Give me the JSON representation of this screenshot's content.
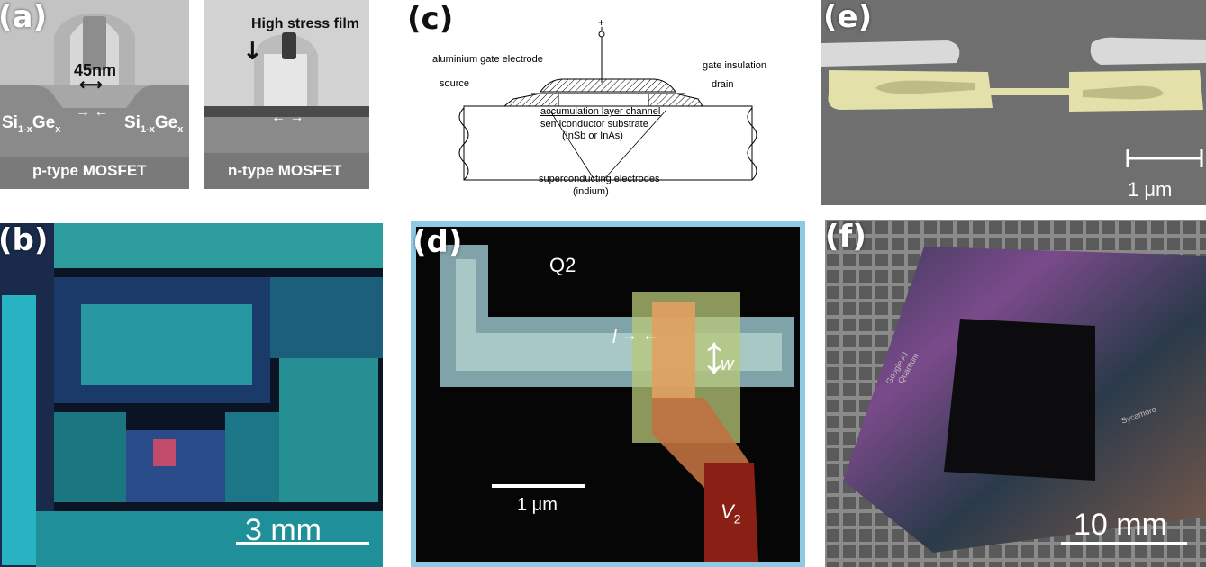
{
  "panels": {
    "a": {
      "label": "(a)",
      "left_device": {
        "dimension": "45nm",
        "material_left": "Si",
        "material_left_sub": "1-x",
        "material_left_ge": "Ge",
        "material_left_ge_sub": "x",
        "material_right": "Si",
        "material_right_sub": "1-x",
        "material_right_ge": "Ge",
        "material_right_ge_sub": "x",
        "caption": "p-type MOSFET"
      },
      "right_device": {
        "annotation": "High stress film",
        "caption": "n-type MOSFET"
      }
    },
    "b": {
      "label": "(b)",
      "scalebar": "3 mm"
    },
    "c": {
      "label": "(c)",
      "terminal": "+",
      "labels": {
        "gate_electrode": "aluminium gate electrode",
        "gate_insulation": "gate insulation",
        "source": "source",
        "drain": "drain",
        "channel": "accumulation layer channel",
        "substrate_line1": "semiconductor substrate",
        "substrate_line2": "(InSb or InAs)",
        "electrodes_line1": "superconducting electrodes",
        "electrodes_line2": "(indium)"
      }
    },
    "d": {
      "label": "(d)",
      "qubit": "Q2",
      "l_label": "l",
      "w_label": "w",
      "v_label": "V",
      "v_sub": "2",
      "scalebar": "1 μm"
    },
    "e": {
      "label": "(e)",
      "scalebar": "1 μm"
    },
    "f": {
      "label": "(f)",
      "scalebar": "10 mm",
      "chip_text_1": "Google AI",
      "chip_text_2": "Quantum",
      "chip_text_3": "Sycamore"
    }
  },
  "colors": {
    "panel_d_border": "#8ecae6",
    "sem_gray": "#7d7d7d",
    "die_cyan": "#2fbfbf",
    "gold": "#e8e4a8"
  }
}
